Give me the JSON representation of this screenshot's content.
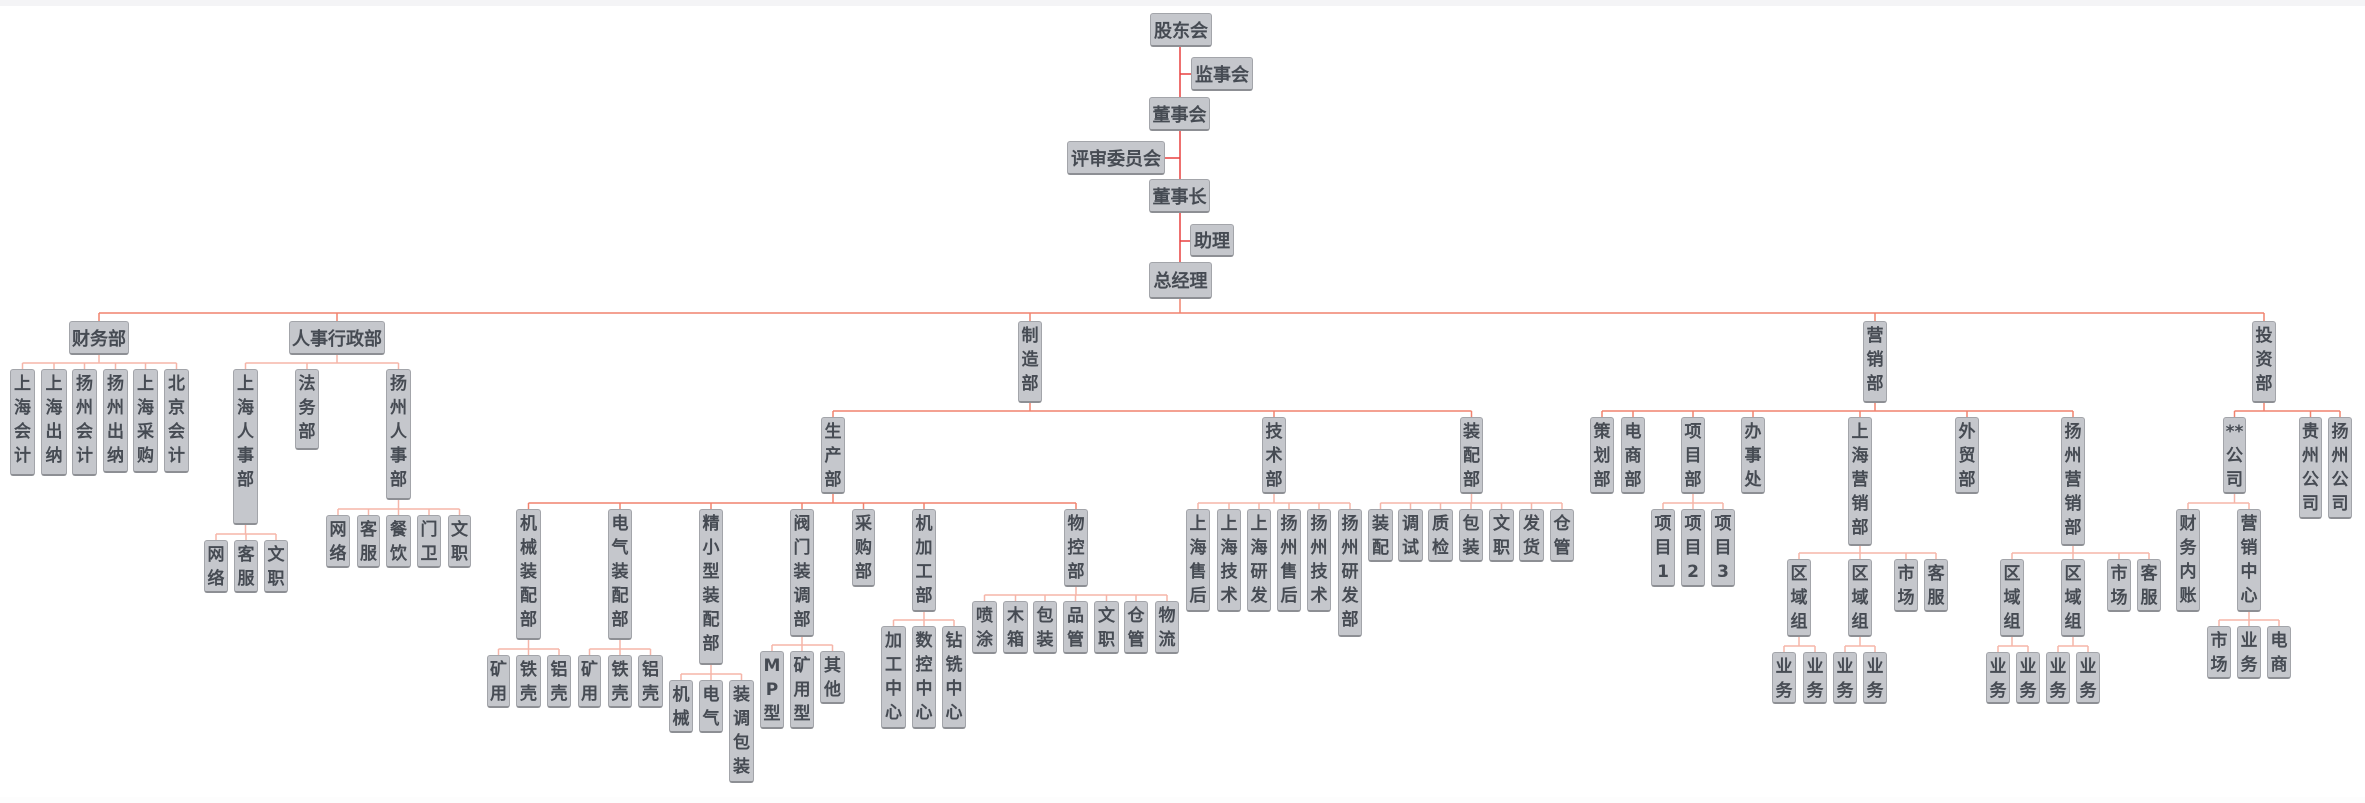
{
  "colors": {
    "node_fill": "#c5c7cc",
    "node_text": "#464b53",
    "trunk_line": "#e8403f",
    "main_line": "#f0826e",
    "sub_line": "#f5b5a8"
  },
  "nodes": [
    {
      "id": 0,
      "label": "股东会",
      "parent": null
    },
    {
      "id": 1,
      "label": "监事会",
      "parent": 0
    },
    {
      "id": 2,
      "label": "董事会",
      "parent": 0
    },
    {
      "id": 3,
      "label": "评审委员会",
      "parent": 2
    },
    {
      "id": 4,
      "label": "董事长",
      "parent": 2
    },
    {
      "id": 5,
      "label": "助理",
      "parent": 4
    },
    {
      "id": 6,
      "label": "总经理",
      "parent": 4
    },
    {
      "id": 7,
      "label": "财务部",
      "parent": 6
    },
    {
      "id": 8,
      "label": "人事行政部",
      "parent": 6
    },
    {
      "id": 9,
      "label": "制造部",
      "parent": 6
    },
    {
      "id": 10,
      "label": "营销部",
      "parent": 6
    },
    {
      "id": 11,
      "label": "投资部",
      "parent": 6
    },
    {
      "id": 12,
      "label": "上海会计",
      "parent": 7
    },
    {
      "id": 13,
      "label": "上海出纳",
      "parent": 7
    },
    {
      "id": 14,
      "label": "扬州会计",
      "parent": 7
    },
    {
      "id": 15,
      "label": "扬州出纳",
      "parent": 7
    },
    {
      "id": 16,
      "label": "上海采购",
      "parent": 7
    },
    {
      "id": 17,
      "label": "北京会计",
      "parent": 7
    },
    {
      "id": 18,
      "label": "上海人事部",
      "parent": 8
    },
    {
      "id": 19,
      "label": "法务部",
      "parent": 8
    },
    {
      "id": 20,
      "label": "扬州人事部",
      "parent": 8
    },
    {
      "id": 21,
      "label": "网络",
      "parent": 18
    },
    {
      "id": 22,
      "label": "客服",
      "parent": 18
    },
    {
      "id": 23,
      "label": "文职",
      "parent": 18
    },
    {
      "id": 24,
      "label": "网络",
      "parent": 20
    },
    {
      "id": 25,
      "label": "客服",
      "parent": 20
    },
    {
      "id": 26,
      "label": "餐饮",
      "parent": 20
    },
    {
      "id": 27,
      "label": "门卫",
      "parent": 20
    },
    {
      "id": 28,
      "label": "文职",
      "parent": 20
    },
    {
      "id": 29,
      "label": "生产部",
      "parent": 9
    },
    {
      "id": 30,
      "label": "技术部",
      "parent": 9
    },
    {
      "id": 31,
      "label": "装配部",
      "parent": 9
    },
    {
      "id": 32,
      "label": "机械装配部",
      "parent": 29
    },
    {
      "id": 33,
      "label": "电气装配部",
      "parent": 29
    },
    {
      "id": 34,
      "label": "精小型装配部",
      "parent": 29
    },
    {
      "id": 35,
      "label": "阀门装调部",
      "parent": 29
    },
    {
      "id": 36,
      "label": "采购部",
      "parent": 29
    },
    {
      "id": 37,
      "label": "机加工部",
      "parent": 29
    },
    {
      "id": 38,
      "label": "物控部",
      "parent": 29
    },
    {
      "id": 39,
      "label": "矿用",
      "parent": 32
    },
    {
      "id": 40,
      "label": "铁壳",
      "parent": 32
    },
    {
      "id": 41,
      "label": "铝壳",
      "parent": 32
    },
    {
      "id": 42,
      "label": "矿用",
      "parent": 33
    },
    {
      "id": 43,
      "label": "铁壳",
      "parent": 33
    },
    {
      "id": 44,
      "label": "铝壳",
      "parent": 33
    },
    {
      "id": 45,
      "label": "机械",
      "parent": 34
    },
    {
      "id": 46,
      "label": "电气",
      "parent": 34
    },
    {
      "id": 47,
      "label": "装调包装",
      "parent": 34
    },
    {
      "id": 48,
      "label": "MP型",
      "parent": 35
    },
    {
      "id": 49,
      "label": "矿用型",
      "parent": 35
    },
    {
      "id": 50,
      "label": "其他",
      "parent": 35
    },
    {
      "id": 51,
      "label": "加工中心",
      "parent": 37
    },
    {
      "id": 52,
      "label": "数控中心",
      "parent": 37
    },
    {
      "id": 53,
      "label": "钻铣中心",
      "parent": 37
    },
    {
      "id": 54,
      "label": "喷涂",
      "parent": 38
    },
    {
      "id": 55,
      "label": "木箱",
      "parent": 38
    },
    {
      "id": 56,
      "label": "包装",
      "parent": 38
    },
    {
      "id": 57,
      "label": "品管",
      "parent": 38
    },
    {
      "id": 58,
      "label": "文职",
      "parent": 38
    },
    {
      "id": 59,
      "label": "仓管",
      "parent": 38
    },
    {
      "id": 60,
      "label": "物流",
      "parent": 38
    },
    {
      "id": 61,
      "label": "上海售后",
      "parent": 30
    },
    {
      "id": 62,
      "label": "上海技术",
      "parent": 30
    },
    {
      "id": 63,
      "label": "上海研发",
      "parent": 30
    },
    {
      "id": 64,
      "label": "扬州售后",
      "parent": 30
    },
    {
      "id": 65,
      "label": "扬州技术",
      "parent": 30
    },
    {
      "id": 66,
      "label": "扬州研发部",
      "parent": 30
    },
    {
      "id": 67,
      "label": "装配",
      "parent": 31
    },
    {
      "id": 68,
      "label": "调试",
      "parent": 31
    },
    {
      "id": 69,
      "label": "质检",
      "parent": 31
    },
    {
      "id": 70,
      "label": "包装",
      "parent": 31
    },
    {
      "id": 71,
      "label": "文职",
      "parent": 31
    },
    {
      "id": 72,
      "label": "发货",
      "parent": 31
    },
    {
      "id": 73,
      "label": "仓管",
      "parent": 31
    },
    {
      "id": 74,
      "label": "策划部",
      "parent": 10
    },
    {
      "id": 75,
      "label": "电商部",
      "parent": 10
    },
    {
      "id": 76,
      "label": "项目部",
      "parent": 10
    },
    {
      "id": 77,
      "label": "办事处",
      "parent": 10
    },
    {
      "id": 78,
      "label": "上海营销部",
      "parent": 10
    },
    {
      "id": 79,
      "label": "外贸部",
      "parent": 10
    },
    {
      "id": 80,
      "label": "扬州营销部",
      "parent": 10
    },
    {
      "id": 81,
      "label": "项目1",
      "parent": 76
    },
    {
      "id": 82,
      "label": "项目2",
      "parent": 76
    },
    {
      "id": 83,
      "label": "项目3",
      "parent": 76
    },
    {
      "id": 84,
      "label": "区域组",
      "parent": 78
    },
    {
      "id": 85,
      "label": "区域组",
      "parent": 78
    },
    {
      "id": 86,
      "label": "市场",
      "parent": 78
    },
    {
      "id": 87,
      "label": "客服",
      "parent": 78
    },
    {
      "id": 88,
      "label": "业务",
      "parent": 84
    },
    {
      "id": 89,
      "label": "业务",
      "parent": 84
    },
    {
      "id": 90,
      "label": "业务",
      "parent": 85
    },
    {
      "id": 91,
      "label": "业务",
      "parent": 85
    },
    {
      "id": 92,
      "label": "区域组",
      "parent": 80
    },
    {
      "id": 93,
      "label": "区域组",
      "parent": 80
    },
    {
      "id": 94,
      "label": "市场",
      "parent": 80
    },
    {
      "id": 95,
      "label": "客服",
      "parent": 80
    },
    {
      "id": 96,
      "label": "业务",
      "parent": 92
    },
    {
      "id": 97,
      "label": "业务",
      "parent": 92
    },
    {
      "id": 98,
      "label": "业务",
      "parent": 93
    },
    {
      "id": 99,
      "label": "业务",
      "parent": 93
    },
    {
      "id": 100,
      "label": "**公司",
      "parent": 11
    },
    {
      "id": 101,
      "label": "贵州公司",
      "parent": 11
    },
    {
      "id": 102,
      "label": "扬州公司",
      "parent": 11
    },
    {
      "id": 103,
      "label": "财务内账",
      "parent": 100
    },
    {
      "id": 104,
      "label": "营销中心",
      "parent": 100
    },
    {
      "id": 105,
      "label": "市场",
      "parent": 104
    },
    {
      "id": 106,
      "label": "业务",
      "parent": 104
    },
    {
      "id": 107,
      "label": "电商",
      "parent": 104
    }
  ]
}
